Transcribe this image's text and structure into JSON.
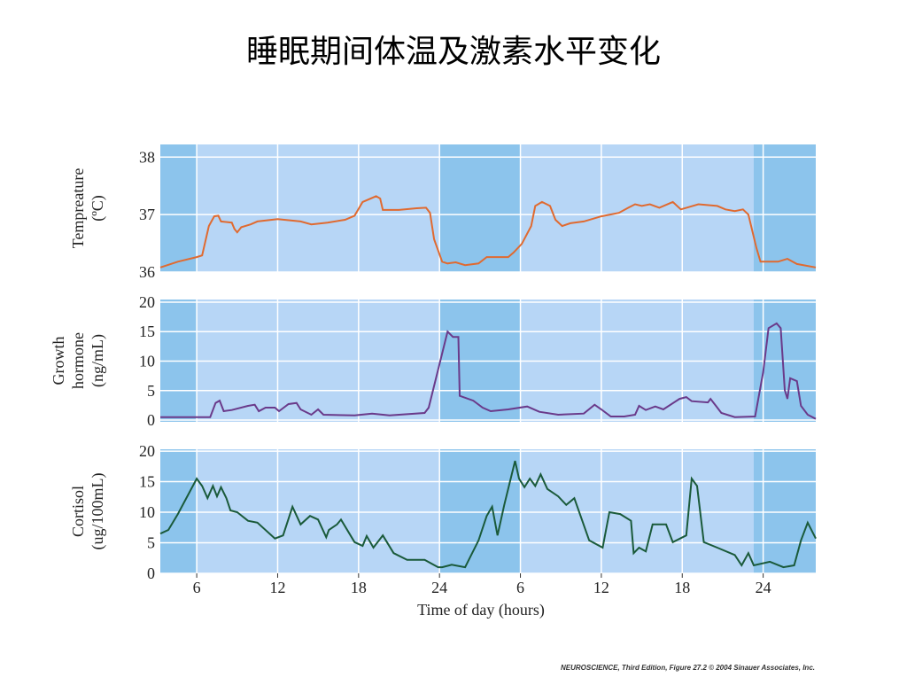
{
  "title": "睡眠期间体温及激素水平变化",
  "footer": "NEUROSCIENCE, Third Edition, Figure 27.2 © 2004 Sinauer Associates, Inc.",
  "sleep_periods": [
    [
      3.3,
      6
    ],
    [
      24,
      30
    ],
    [
      47.3,
      51.9
    ]
  ],
  "chart_data": [
    {
      "type": "line",
      "ylabel": [
        "Tempreature",
        "(ºC)"
      ],
      "color": "#e06a30",
      "ylim": [
        36,
        38.22
      ],
      "yticks": [
        36,
        37,
        38
      ],
      "x": [
        3.3,
        4.6,
        6.0,
        6.4,
        6.9,
        7.3,
        7.6,
        7.8,
        8.6,
        8.8,
        9.0,
        9.3,
        10.0,
        10.5,
        12.0,
        13.7,
        14.5,
        15.7,
        17.0,
        17.7,
        18.3,
        19.3,
        19.6,
        19.8,
        21.0,
        22.3,
        23.0,
        23.3,
        23.6,
        24.2,
        24.6,
        25.2,
        25.9,
        26.9,
        27.5,
        29.1,
        29.5,
        30.1,
        30.8,
        31.1,
        31.6,
        32.2,
        32.6,
        33.1,
        33.7,
        34.7,
        36.0,
        37.3,
        38.0,
        38.5,
        39.0,
        39.6,
        40.3,
        41.3,
        41.9,
        43.2,
        44.6,
        45.2,
        45.9,
        46.5,
        46.9,
        47.5,
        47.8,
        49.1,
        49.8,
        50.5,
        51.9
      ],
      "values": [
        36.08,
        36.18,
        36.26,
        36.29,
        36.8,
        36.97,
        36.98,
        36.88,
        36.86,
        36.75,
        36.69,
        36.78,
        36.83,
        36.88,
        36.92,
        36.88,
        36.83,
        36.86,
        36.91,
        36.98,
        37.22,
        37.32,
        37.28,
        37.08,
        37.08,
        37.11,
        37.12,
        37.03,
        36.57,
        36.18,
        36.15,
        36.17,
        36.12,
        36.15,
        36.26,
        36.26,
        36.34,
        36.49,
        36.8,
        37.15,
        37.22,
        37.15,
        36.91,
        36.8,
        36.85,
        36.88,
        36.97,
        37.03,
        37.12,
        37.18,
        37.15,
        37.18,
        37.12,
        37.22,
        37.09,
        37.18,
        37.15,
        37.09,
        37.06,
        37.09,
        37.0,
        36.42,
        36.18,
        36.18,
        36.23,
        36.14,
        36.08
      ]
    },
    {
      "type": "line",
      "ylabel": [
        "Growth",
        "hormone",
        "(ng/mL)"
      ],
      "color": "#6a3a8a",
      "ylim": [
        -0.3,
        20.45
      ],
      "yticks": [
        0,
        5,
        10,
        15,
        20
      ],
      "x": [
        3.3,
        7.0,
        7.4,
        7.7,
        8.0,
        8.6,
        9.8,
        10.3,
        10.6,
        11.1,
        11.8,
        12.1,
        12.8,
        13.4,
        13.7,
        14.5,
        15.0,
        15.4,
        17.7,
        19.0,
        20.3,
        22.9,
        23.2,
        24.6,
        25.0,
        25.4,
        25.5,
        26.5,
        27.2,
        27.8,
        29.1,
        30.5,
        31.4,
        32.8,
        34.7,
        35.5,
        36.0,
        36.7,
        37.7,
        38.5,
        38.8,
        39.3,
        40.0,
        40.6,
        41.8,
        42.3,
        42.7,
        43.9,
        44.1,
        44.5,
        44.9,
        45.9,
        47.4,
        48.0,
        48.4,
        49.0,
        49.3,
        49.6,
        49.8,
        50.0,
        50.5,
        50.8,
        51.3,
        51.9
      ],
      "values": [
        0.5,
        0.5,
        2.9,
        3.3,
        1.5,
        1.7,
        2.4,
        2.6,
        1.5,
        2.1,
        2.1,
        1.5,
        2.7,
        2.9,
        1.8,
        0.9,
        1.8,
        0.9,
        0.8,
        1.1,
        0.8,
        1.2,
        2.1,
        15.0,
        14.1,
        14.1,
        4.1,
        3.3,
        2.1,
        1.5,
        1.8,
        2.3,
        1.4,
        0.9,
        1.1,
        2.6,
        1.8,
        0.6,
        0.6,
        0.9,
        2.4,
        1.7,
        2.3,
        1.8,
        3.6,
        3.9,
        3.2,
        3.0,
        3.6,
        2.4,
        1.2,
        0.5,
        0.6,
        8.1,
        15.6,
        16.4,
        15.6,
        5.1,
        3.6,
        7.1,
        6.6,
        2.4,
        0.9,
        0.2
      ]
    },
    {
      "type": "line",
      "ylabel": [
        "Cortisol",
        "(ug/100mL)"
      ],
      "color": "#1a5a3a",
      "ylim": [
        0,
        20.3
      ],
      "yticks": [
        0,
        5,
        10,
        15,
        20
      ],
      "xlim": [
        3.3,
        51.9
      ],
      "xlabel": "Time of day (hours)",
      "xticks": [
        6,
        12,
        18,
        24,
        {
          "value": 30,
          "label": "6"
        },
        {
          "value": 36,
          "label": "12"
        },
        {
          "value": 42,
          "label": "18"
        },
        {
          "value": 48,
          "label": "24"
        }
      ],
      "x": [
        3.3,
        3.9,
        4.6,
        6.0,
        6.4,
        6.8,
        7.2,
        7.5,
        7.8,
        8.2,
        8.5,
        9.0,
        9.8,
        10.5,
        11.8,
        12.4,
        13.1,
        13.7,
        14.4,
        15.0,
        15.6,
        15.8,
        16.4,
        16.7,
        17.7,
        18.3,
        18.6,
        19.1,
        19.8,
        20.6,
        21.6,
        22.9,
        23.9,
        24.2,
        24.9,
        25.9,
        26.9,
        27.5,
        27.9,
        28.3,
        28.8,
        29.6,
        29.9,
        30.3,
        30.7,
        31.1,
        31.5,
        32.0,
        32.8,
        33.4,
        34.0,
        35.1,
        36.1,
        36.6,
        37.4,
        38.2,
        38.4,
        38.8,
        39.3,
        39.8,
        40.8,
        41.3,
        42.3,
        42.7,
        43.1,
        43.6,
        44.6,
        45.9,
        46.4,
        46.9,
        47.3,
        48.5,
        49.5,
        50.3,
        50.8,
        51.3,
        51.9
      ],
      "values": [
        6.5,
        7.1,
        9.7,
        15.5,
        14.3,
        12.3,
        14.3,
        12.6,
        14.1,
        12.3,
        10.3,
        10.0,
        8.6,
        8.3,
        5.7,
        6.2,
        10.9,
        8.0,
        9.4,
        8.8,
        5.9,
        7.1,
        8.0,
        8.8,
        5.1,
        4.5,
        6.1,
        4.2,
        6.2,
        3.3,
        2.2,
        2.2,
        1.0,
        1.0,
        1.4,
        1.0,
        5.4,
        9.4,
        10.9,
        6.2,
        11.2,
        18.4,
        15.5,
        14.1,
        15.5,
        14.3,
        16.2,
        13.8,
        12.6,
        11.2,
        12.3,
        5.4,
        4.2,
        10.0,
        9.7,
        8.6,
        3.3,
        4.2,
        3.6,
        8.0,
        8.0,
        5.1,
        6.2,
        15.5,
        14.3,
        5.1,
        4.2,
        3.0,
        1.3,
        3.3,
        1.3,
        1.9,
        1.0,
        1.3,
        5.4,
        8.3,
        5.7
      ]
    }
  ]
}
